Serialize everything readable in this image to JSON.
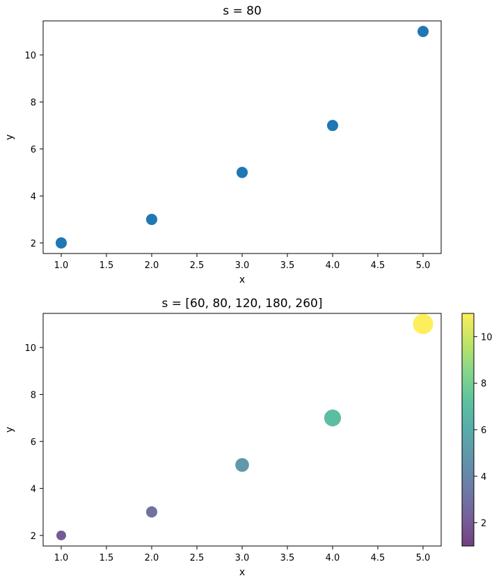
{
  "chart_data": [
    {
      "type": "scatter",
      "title": "s = 80",
      "xlabel": "x",
      "ylabel": "y",
      "x": [
        1,
        2,
        3,
        4,
        5
      ],
      "y": [
        2,
        3,
        5,
        7,
        11
      ],
      "marker_size": 80,
      "color": "#1f77b4",
      "xlim": [
        0.8,
        5.2
      ],
      "ylim": [
        1.55,
        11.45
      ],
      "xticks": [
        "1.0",
        "1.5",
        "2.0",
        "2.5",
        "3.0",
        "3.5",
        "4.0",
        "4.5",
        "5.0"
      ],
      "yticks": [
        "2",
        "4",
        "6",
        "8",
        "10"
      ],
      "grid": false
    },
    {
      "type": "scatter",
      "title": "s = [60, 80, 120, 180, 260]",
      "xlabel": "x",
      "ylabel": "y",
      "x": [
        1,
        2,
        3,
        4,
        5
      ],
      "y": [
        2,
        3,
        5,
        7,
        11
      ],
      "marker_sizes": [
        60,
        80,
        120,
        180,
        260
      ],
      "color_values": [
        2,
        3,
        5,
        7,
        11
      ],
      "colormap": "viridis",
      "alpha": 0.75,
      "xlim": [
        0.8,
        5.2
      ],
      "ylim": [
        1.55,
        11.45
      ],
      "xticks": [
        "1.0",
        "1.5",
        "2.0",
        "2.5",
        "3.0",
        "3.5",
        "4.0",
        "4.5",
        "5.0"
      ],
      "yticks": [
        "2",
        "4",
        "6",
        "8",
        "10"
      ],
      "grid": false,
      "colorbar": {
        "range": [
          1,
          11
        ],
        "ticks": [
          "2",
          "4",
          "6",
          "8",
          "10"
        ]
      }
    }
  ]
}
